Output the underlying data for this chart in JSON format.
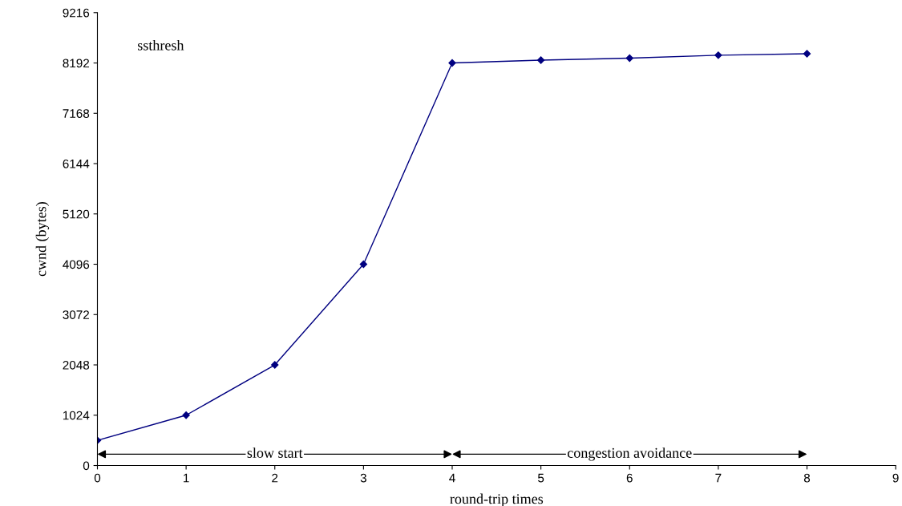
{
  "chart_data": {
    "type": "line",
    "xlabel": "round-trip times",
    "ylabel": "cwnd (bytes)",
    "x": [
      0,
      1,
      2,
      3,
      4,
      5,
      6,
      7,
      8
    ],
    "series": [
      {
        "color": "#000080",
        "values": [
          512,
          1024,
          2048,
          4096,
          8192,
          8250,
          8290,
          8350,
          8380
        ]
      }
    ],
    "xlim": [
      0,
      9
    ],
    "xticks": [
      0,
      1,
      2,
      3,
      4,
      5,
      6,
      7,
      8,
      9
    ],
    "ylim": [
      0,
      9216
    ],
    "yticks": [
      0,
      1024,
      2048,
      3072,
      4096,
      5120,
      6144,
      7168,
      8192,
      9216
    ],
    "grid": false,
    "legend": false,
    "marker": "diamond",
    "line_style": "solid",
    "annotations": [
      "ssthresh",
      "slow start",
      "congestion avoidance"
    ]
  }
}
